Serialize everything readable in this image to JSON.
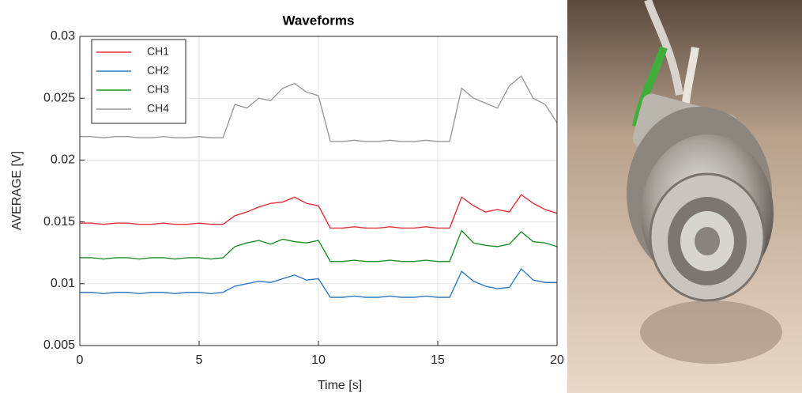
{
  "chart_data": {
    "type": "line",
    "title": "Waveforms",
    "x_label": "Time [s]",
    "y_label": "AVERAGE [V]",
    "x": [
      0,
      0.5,
      1,
      1.5,
      2,
      2.5,
      3,
      3.5,
      4,
      4.5,
      5,
      5.5,
      6,
      6.5,
      7,
      7.5,
      8,
      8.5,
      9,
      9.5,
      10,
      10.5,
      11,
      11.5,
      12,
      12.5,
      13,
      13.5,
      14,
      14.5,
      15,
      15.5,
      16,
      16.5,
      17,
      17.5,
      18,
      18.5,
      19,
      19.5,
      20
    ],
    "series": [
      {
        "name": "CH1",
        "color": "#e2303a",
        "values": [
          0.0149,
          0.0149,
          0.0148,
          0.0149,
          0.0149,
          0.0148,
          0.0148,
          0.0149,
          0.0148,
          0.0148,
          0.0149,
          0.0148,
          0.0148,
          0.0155,
          0.0158,
          0.0162,
          0.0165,
          0.0166,
          0.017,
          0.0165,
          0.0163,
          0.0145,
          0.0145,
          0.0146,
          0.0145,
          0.0145,
          0.0146,
          0.0145,
          0.0145,
          0.0146,
          0.0145,
          0.0145,
          0.017,
          0.0163,
          0.0158,
          0.016,
          0.0158,
          0.0172,
          0.0165,
          0.016,
          0.0157
        ]
      },
      {
        "name": "CH2",
        "color": "#2f7bbf",
        "values": [
          0.0093,
          0.0093,
          0.0092,
          0.0093,
          0.0093,
          0.0092,
          0.0093,
          0.0093,
          0.0092,
          0.0093,
          0.0093,
          0.0092,
          0.0093,
          0.0098,
          0.01,
          0.0102,
          0.0101,
          0.0104,
          0.0107,
          0.0103,
          0.0104,
          0.0089,
          0.0089,
          0.009,
          0.0089,
          0.0089,
          0.009,
          0.0089,
          0.0089,
          0.009,
          0.0089,
          0.0089,
          0.011,
          0.0102,
          0.0098,
          0.0096,
          0.0097,
          0.0112,
          0.0103,
          0.0101,
          0.0101
        ]
      },
      {
        "name": "CH3",
        "color": "#1f8f2a",
        "values": [
          0.0121,
          0.0121,
          0.012,
          0.0121,
          0.0121,
          0.012,
          0.0121,
          0.0121,
          0.012,
          0.0121,
          0.0121,
          0.012,
          0.0121,
          0.013,
          0.0133,
          0.0135,
          0.0132,
          0.0136,
          0.0134,
          0.0133,
          0.0135,
          0.0118,
          0.0118,
          0.0119,
          0.0118,
          0.0118,
          0.0119,
          0.0118,
          0.0118,
          0.0119,
          0.0118,
          0.0118,
          0.0143,
          0.0133,
          0.0131,
          0.013,
          0.0132,
          0.0142,
          0.0134,
          0.0133,
          0.013
        ]
      },
      {
        "name": "CH4",
        "color": "#9a9a9a",
        "values": [
          0.0219,
          0.0219,
          0.0218,
          0.0219,
          0.0219,
          0.0218,
          0.0218,
          0.0219,
          0.0218,
          0.0218,
          0.0219,
          0.0218,
          0.0218,
          0.0245,
          0.0242,
          0.025,
          0.0248,
          0.0258,
          0.0262,
          0.0255,
          0.0252,
          0.0215,
          0.0215,
          0.0216,
          0.0215,
          0.0215,
          0.0216,
          0.0215,
          0.0215,
          0.0216,
          0.0215,
          0.0215,
          0.0258,
          0.025,
          0.0246,
          0.0242,
          0.026,
          0.0268,
          0.025,
          0.0245,
          0.023
        ]
      }
    ],
    "xlim": [
      0,
      20
    ],
    "xticks": [
      0,
      5,
      10,
      15,
      20
    ],
    "ylim": [
      0.005,
      0.03
    ],
    "yticks": [
      0.005,
      0.01,
      0.015,
      0.02,
      0.025,
      0.03
    ],
    "grid": true,
    "legend": "upper-left"
  }
}
